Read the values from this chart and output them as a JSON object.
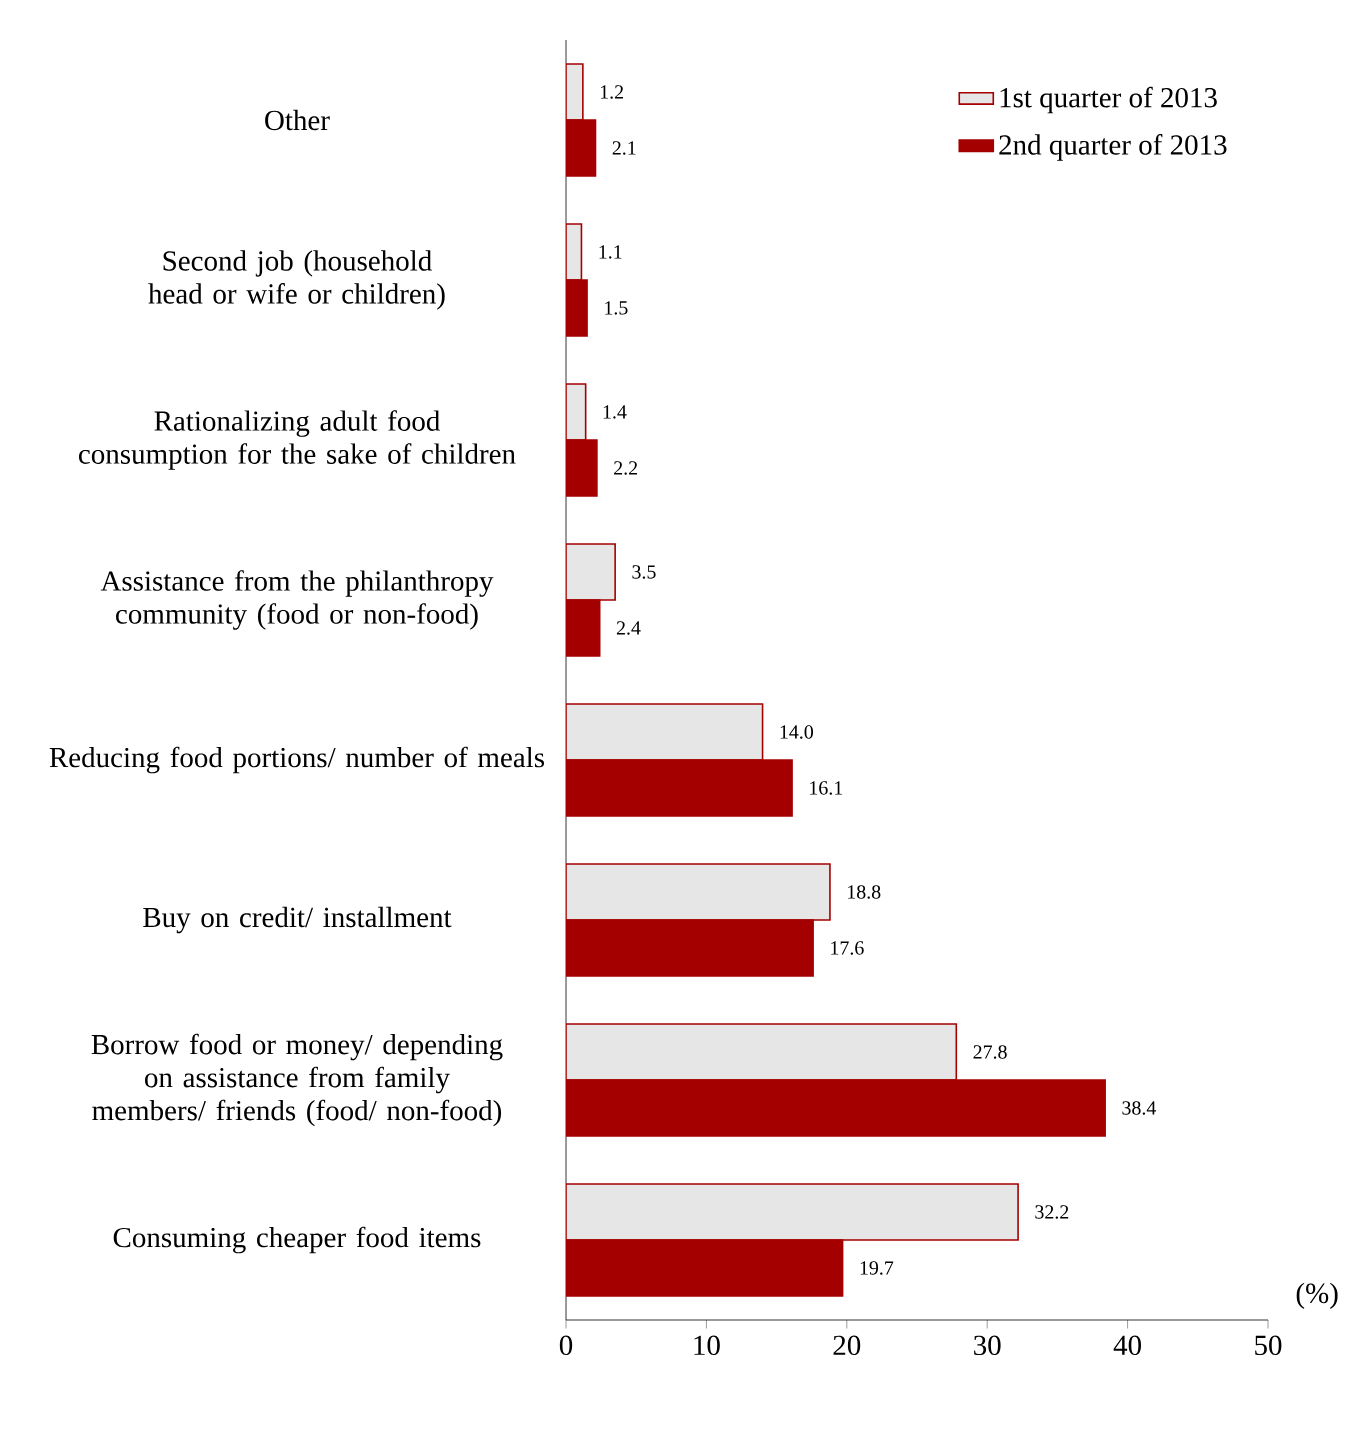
{
  "chart_data": {
    "type": "bar",
    "orientation": "horizontal",
    "xlabel": "(%)",
    "categories": [
      "Other",
      "Second job (household head or wife or children)",
      "Rationalizing adult food consumption for the sake of children",
      "Assistance from the philanthropy community (food or non-food)",
      "Reducing food portions/ number of meals",
      "Buy on credit/ installment",
      "Borrow food or money/ depending on assistance from family members/ friends (food/ non-food)",
      "Consuming cheaper food items"
    ],
    "series": [
      {
        "name": "1st quarter of 2013",
        "color": "#e6e6e6",
        "values": [
          1.2,
          1.1,
          1.4,
          3.5,
          14.0,
          18.8,
          27.8,
          32.2
        ],
        "value_labels": [
          "1.2",
          "1.1",
          "1.4",
          "3.5",
          "14.0",
          "18.8",
          "27.8",
          "32.2"
        ]
      },
      {
        "name": "2nd quarter of 2013",
        "color": "#a50000",
        "values": [
          2.1,
          1.5,
          2.2,
          2.4,
          16.1,
          17.6,
          38.4,
          19.7
        ],
        "value_labels": [
          "2.1",
          "1.5",
          "2.2",
          "2.4",
          "16.1",
          "17.6",
          "38.4",
          "19.7"
        ]
      }
    ],
    "xlim": [
      0,
      50
    ],
    "xticks": [
      0,
      10,
      20,
      30,
      40,
      50
    ],
    "legend": "top right"
  }
}
